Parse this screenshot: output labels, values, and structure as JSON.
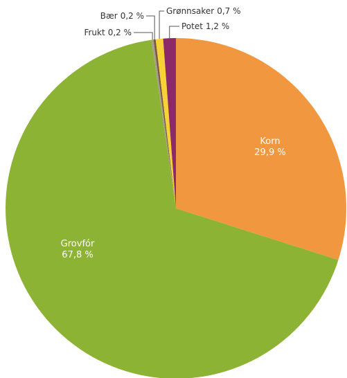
{
  "chart_data": {
    "type": "pie",
    "categories": [
      "Korn",
      "Grovfór",
      "Frukt",
      "Bær",
      "Grønnsaker",
      "Potet"
    ],
    "values": [
      29.9,
      67.8,
      0.2,
      0.2,
      0.7,
      1.2
    ],
    "value_labels": [
      "29,9 %",
      "67,8 %",
      "0,2 %",
      "0,2 %",
      "0,7 %",
      "1,2 %"
    ],
    "colors": [
      "#f0973f",
      "#8db334",
      "#a39d90",
      "#7b5a3c",
      "#f6d235",
      "#8b2a66"
    ]
  }
}
